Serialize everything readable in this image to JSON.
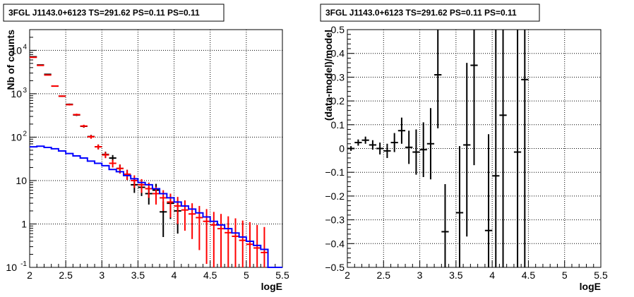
{
  "chart_data": [
    {
      "type": "scatter",
      "title": "3FGL J1143.0+6123 TS=291.62 PS=0.11 PS=0.11",
      "xlabel": "logE",
      "ylabel": "Nb of counts",
      "xlim": [
        2,
        5.5
      ],
      "ylim": [
        0.1,
        30000
      ],
      "yscale": "log",
      "grid": true,
      "xticks": [
        "2",
        "2.5",
        "3",
        "3.5",
        "4",
        "4.5",
        "5",
        "5.5"
      ],
      "yticks": [
        {
          "value": 0.1,
          "label": "10",
          "exp": "-1"
        },
        {
          "value": 1,
          "label": "1",
          "exp": ""
        },
        {
          "value": 10,
          "label": "10",
          "exp": ""
        },
        {
          "value": 100,
          "label": "10",
          "exp": "2"
        },
        {
          "value": 1000,
          "label": "10",
          "exp": "3"
        },
        {
          "value": 10000,
          "label": "10",
          "exp": "4"
        }
      ],
      "colors": {
        "data": "#000000",
        "model": "#ff0000",
        "background": "#0000ff"
      },
      "series": [
        {
          "kind": "points",
          "color": "#000000",
          "points": [
            {
              "x": 2.05,
              "y": 7100,
              "lo": 7016,
              "hi": 7184
            },
            {
              "x": 2.15,
              "y": 4600,
              "lo": 4532,
              "hi": 4668
            },
            {
              "x": 2.25,
              "y": 2800,
              "lo": 2747,
              "hi": 2853
            },
            {
              "x": 2.35,
              "y": 1500,
              "lo": 1461,
              "hi": 1539
            },
            {
              "x": 2.45,
              "y": 880,
              "lo": 850,
              "hi": 910
            },
            {
              "x": 2.55,
              "y": 570,
              "lo": 546,
              "hi": 594
            },
            {
              "x": 2.65,
              "y": 325,
              "lo": 307,
              "hi": 343
            },
            {
              "x": 2.75,
              "y": 178,
              "lo": 165,
              "hi": 191
            },
            {
              "x": 2.85,
              "y": 103,
              "lo": 93,
              "hi": 113
            },
            {
              "x": 2.95,
              "y": 60,
              "lo": 52.3,
              "hi": 67.7
            },
            {
              "x": 3.05,
              "y": 40,
              "lo": 33.7,
              "hi": 46.3
            },
            {
              "x": 3.15,
              "y": 33,
              "lo": 27.3,
              "hi": 38.7
            },
            {
              "x": 3.25,
              "y": 19,
              "lo": 14.6,
              "hi": 23.4
            },
            {
              "x": 3.35,
              "y": 14,
              "lo": 10.3,
              "hi": 17.7
            },
            {
              "x": 3.45,
              "y": 8,
              "lo": 5.2,
              "hi": 10.8
            },
            {
              "x": 3.55,
              "y": 7,
              "lo": 4.4,
              "hi": 9.6
            },
            {
              "x": 3.65,
              "y": 5,
              "lo": 2.8,
              "hi": 7.2
            },
            {
              "x": 3.75,
              "y": 6,
              "lo": 3.6,
              "hi": 8.4
            },
            {
              "x": 3.85,
              "y": 1.9,
              "lo": 0.5,
              "hi": 3.3
            },
            {
              "x": 3.95,
              "y": 3,
              "lo": 1.3,
              "hi": 4.7
            },
            {
              "x": 4.05,
              "y": 2,
              "lo": 0.6,
              "hi": 3.4
            }
          ]
        },
        {
          "kind": "points",
          "color": "#ff0000",
          "points": [
            {
              "x": 2.05,
              "y": 6900,
              "lo": 6817,
              "hi": 6983
            },
            {
              "x": 2.15,
              "y": 4500,
              "lo": 4433,
              "hi": 4567
            },
            {
              "x": 2.25,
              "y": 2700,
              "lo": 2648,
              "hi": 2752
            },
            {
              "x": 2.35,
              "y": 1500,
              "lo": 1461,
              "hi": 1539
            },
            {
              "x": 2.45,
              "y": 880,
              "lo": 850,
              "hi": 910
            },
            {
              "x": 2.55,
              "y": 560,
              "lo": 536,
              "hi": 584
            },
            {
              "x": 2.65,
              "y": 330,
              "lo": 312,
              "hi": 348
            },
            {
              "x": 2.75,
              "y": 180,
              "lo": 167,
              "hi": 193
            },
            {
              "x": 2.85,
              "y": 102,
              "lo": 92,
              "hi": 112
            },
            {
              "x": 2.95,
              "y": 60,
              "lo": 52.3,
              "hi": 67.7
            },
            {
              "x": 3.05,
              "y": 39,
              "lo": 32.8,
              "hi": 45.2
            },
            {
              "x": 3.15,
              "y": 25,
              "lo": 20,
              "hi": 30
            },
            {
              "x": 3.25,
              "y": 19,
              "lo": 14.6,
              "hi": 23.4
            },
            {
              "x": 3.35,
              "y": 14,
              "lo": 10.3,
              "hi": 17.7
            },
            {
              "x": 3.45,
              "y": 10,
              "lo": 6.8,
              "hi": 13.2
            },
            {
              "x": 3.55,
              "y": 8,
              "lo": 5.2,
              "hi": 10.8
            },
            {
              "x": 3.65,
              "y": 6.5,
              "lo": 4,
              "hi": 9
            },
            {
              "x": 3.75,
              "y": 5,
              "lo": 2.8,
              "hi": 7.2
            },
            {
              "x": 3.85,
              "y": 4,
              "lo": 2,
              "hi": 6
            },
            {
              "x": 3.95,
              "y": 3.2,
              "lo": 1.4,
              "hi": 5
            },
            {
              "x": 4.05,
              "y": 2.6,
              "lo": 1,
              "hi": 4.2
            },
            {
              "x": 4.15,
              "y": 2.1,
              "lo": 0.7,
              "hi": 3.5
            },
            {
              "x": 4.25,
              "y": 1.7,
              "lo": 0.45,
              "hi": 3
            },
            {
              "x": 4.35,
              "y": 1.4,
              "lo": 0.25,
              "hi": 2.6
            },
            {
              "x": 4.45,
              "y": 1.15,
              "lo": 0.12,
              "hi": 2.2
            },
            {
              "x": 4.55,
              "y": 0.95,
              "lo": 0.1,
              "hi": 1.9
            },
            {
              "x": 4.65,
              "y": 0.78,
              "lo": 0.1,
              "hi": 1.7
            },
            {
              "x": 4.75,
              "y": 0.63,
              "lo": 0.1,
              "hi": 1.5
            },
            {
              "x": 4.85,
              "y": 0.52,
              "lo": 0.1,
              "hi": 1.35
            },
            {
              "x": 4.95,
              "y": 0.42,
              "lo": 0.1,
              "hi": 1.2
            },
            {
              "x": 5.05,
              "y": 0.34,
              "lo": 0.1,
              "hi": 1.1
            },
            {
              "x": 5.15,
              "y": 0.28,
              "lo": 0.1,
              "hi": 0.95
            },
            {
              "x": 5.25,
              "y": 0.22,
              "lo": 0.1,
              "hi": 0.85
            }
          ]
        },
        {
          "kind": "step",
          "color": "#0000ff",
          "x_edges": [
            2.0,
            2.1,
            2.2,
            2.3,
            2.4,
            2.5,
            2.6,
            2.7,
            2.8,
            2.9,
            3.0,
            3.1,
            3.2,
            3.3,
            3.4,
            3.5,
            3.6,
            3.7,
            3.8,
            3.9,
            4.0,
            4.1,
            4.2,
            4.3,
            4.4,
            4.5,
            4.6,
            4.7,
            4.8,
            4.9,
            5.0,
            5.1,
            5.2,
            5.3,
            5.4,
            5.5
          ],
          "values": [
            60,
            62,
            58,
            54,
            48,
            42,
            37,
            33,
            28,
            25,
            22,
            18,
            16,
            13,
            11,
            9,
            8,
            6.5,
            5,
            4,
            3.2,
            2.6,
            2.2,
            1.8,
            1.45,
            1.15,
            0.95,
            0.78,
            0.62,
            0.5,
            0.4,
            0.32,
            0.26,
            0.1,
            0.1
          ]
        }
      ]
    },
    {
      "type": "scatter",
      "title": "3FGL J1143.0+6123 TS=291.62 PS=0.11 PS=0.11",
      "xlabel": "logE",
      "ylabel": "(data-model)/model",
      "xlim": [
        2,
        5.5
      ],
      "ylim": [
        -0.5,
        0.5
      ],
      "yscale": "linear",
      "grid": true,
      "xticks": [
        "2",
        "2.5",
        "3",
        "3.5",
        "4",
        "4.5",
        "5",
        "5.5"
      ],
      "yticks": [
        {
          "value": -0.5,
          "label": "−0.5"
        },
        {
          "value": -0.4,
          "label": "−0.4"
        },
        {
          "value": -0.3,
          "label": "−0.3"
        },
        {
          "value": -0.2,
          "label": "−0.2"
        },
        {
          "value": -0.1,
          "label": "−0.1"
        },
        {
          "value": 0,
          "label": "0"
        },
        {
          "value": 0.1,
          "label": "0.1"
        },
        {
          "value": 0.2,
          "label": "0.2"
        },
        {
          "value": 0.3,
          "label": "0.3"
        },
        {
          "value": 0.4,
          "label": "0.4"
        },
        {
          "value": 0.5,
          "label": "0.5"
        }
      ],
      "series": [
        {
          "kind": "points",
          "color": "#000000",
          "points": [
            {
              "x": 2.05,
              "y": 0.0,
              "lo": -0.01,
              "hi": 0.01
            },
            {
              "x": 2.15,
              "y": 0.025,
              "lo": 0.012,
              "hi": 0.038
            },
            {
              "x": 2.25,
              "y": 0.035,
              "lo": 0.02,
              "hi": 0.05
            },
            {
              "x": 2.35,
              "y": 0.015,
              "lo": -0.005,
              "hi": 0.035
            },
            {
              "x": 2.45,
              "y": 0.0,
              "lo": -0.025,
              "hi": 0.025
            },
            {
              "x": 2.55,
              "y": -0.01,
              "lo": -0.04,
              "hi": 0.02
            },
            {
              "x": 2.65,
              "y": 0.025,
              "lo": -0.015,
              "hi": 0.065
            },
            {
              "x": 2.75,
              "y": 0.075,
              "lo": 0.02,
              "hi": 0.13
            },
            {
              "x": 2.85,
              "y": 0.005,
              "lo": -0.065,
              "hi": 0.075
            },
            {
              "x": 2.95,
              "y": -0.015,
              "lo": -0.11,
              "hi": 0.08
            },
            {
              "x": 3.05,
              "y": -0.005,
              "lo": -0.12,
              "hi": 0.11
            },
            {
              "x": 3.15,
              "y": 0.02,
              "lo": -0.13,
              "hi": 0.17
            },
            {
              "x": 3.25,
              "y": 0.31,
              "lo": 0.085,
              "hi": 0.5
            },
            {
              "x": 3.35,
              "y": -0.35,
              "lo": -0.5,
              "hi": -0.15
            },
            {
              "x": 3.55,
              "y": -0.27,
              "lo": -0.5,
              "hi": 0.01
            },
            {
              "x": 3.65,
              "y": 0.015,
              "lo": -0.37,
              "hi": 0.36
            },
            {
              "x": 3.75,
              "y": 0.35,
              "lo": -0.07,
              "hi": 0.5
            },
            {
              "x": 3.95,
              "y": -0.345,
              "lo": -0.5,
              "hi": 0.06
            },
            {
              "x": 4.05,
              "y": -0.115,
              "lo": -0.5,
              "hi": 0.5
            },
            {
              "x": 4.15,
              "y": 0.14,
              "lo": -0.5,
              "hi": 0.5
            },
            {
              "x": 4.35,
              "y": -0.015,
              "lo": -0.5,
              "hi": 0.5
            },
            {
              "x": 4.45,
              "y": 0.29,
              "lo": -0.5,
              "hi": 0.5
            }
          ]
        }
      ]
    }
  ]
}
